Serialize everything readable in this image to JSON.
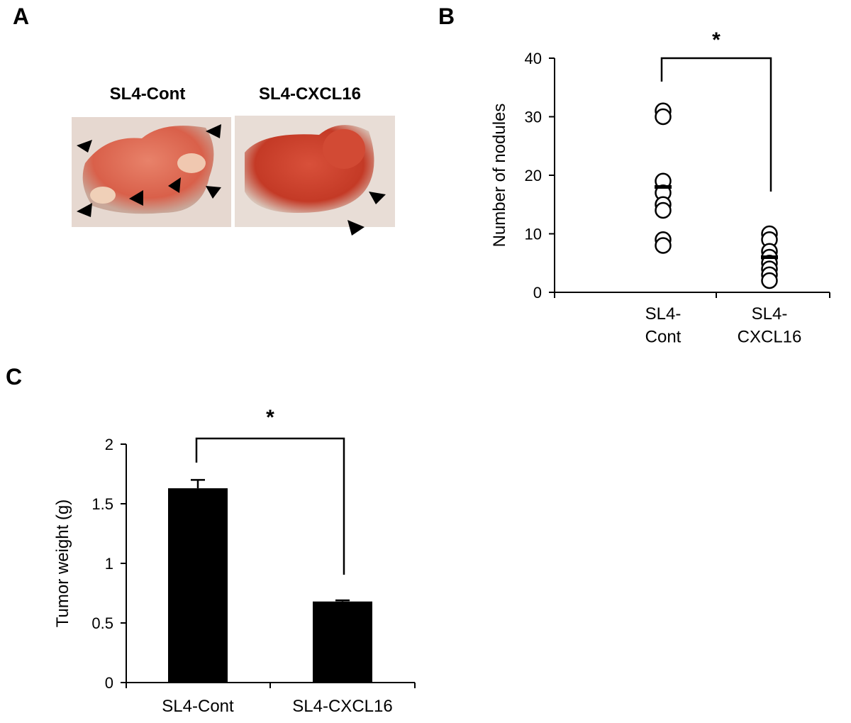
{
  "panel_labels": [
    "A",
    "B",
    "C"
  ],
  "photos": {
    "labels": [
      "SL4-Cont",
      "SL4-CXCL16"
    ]
  },
  "chart_data": [
    {
      "type": "dot",
      "ylabel": "Number of nodules",
      "categories": [
        "SL4-\nCont",
        "SL4-\nCXCL16"
      ],
      "groups": [
        {
          "values": [
            31,
            30,
            19,
            17,
            15,
            14,
            9,
            8
          ],
          "mean": 18
        },
        {
          "values": [
            10,
            9,
            7,
            6,
            5,
            4,
            3,
            2
          ],
          "mean": 6
        }
      ],
      "ylim": [
        0,
        40
      ],
      "yticks": [
        0,
        10,
        20,
        30,
        40
      ],
      "annotation": "*",
      "color": "#000000"
    },
    {
      "type": "bar",
      "ylabel": "Tumor weight (g)",
      "categories": [
        "SL4-Cont",
        "SL4-CXCL16"
      ],
      "values": [
        1.63,
        0.68
      ],
      "errors": [
        0.07,
        0.01
      ],
      "ylim": [
        0,
        2
      ],
      "yticks": [
        0,
        0.5,
        1,
        1.5,
        2
      ],
      "annotation": "*",
      "color": "#000000"
    }
  ]
}
